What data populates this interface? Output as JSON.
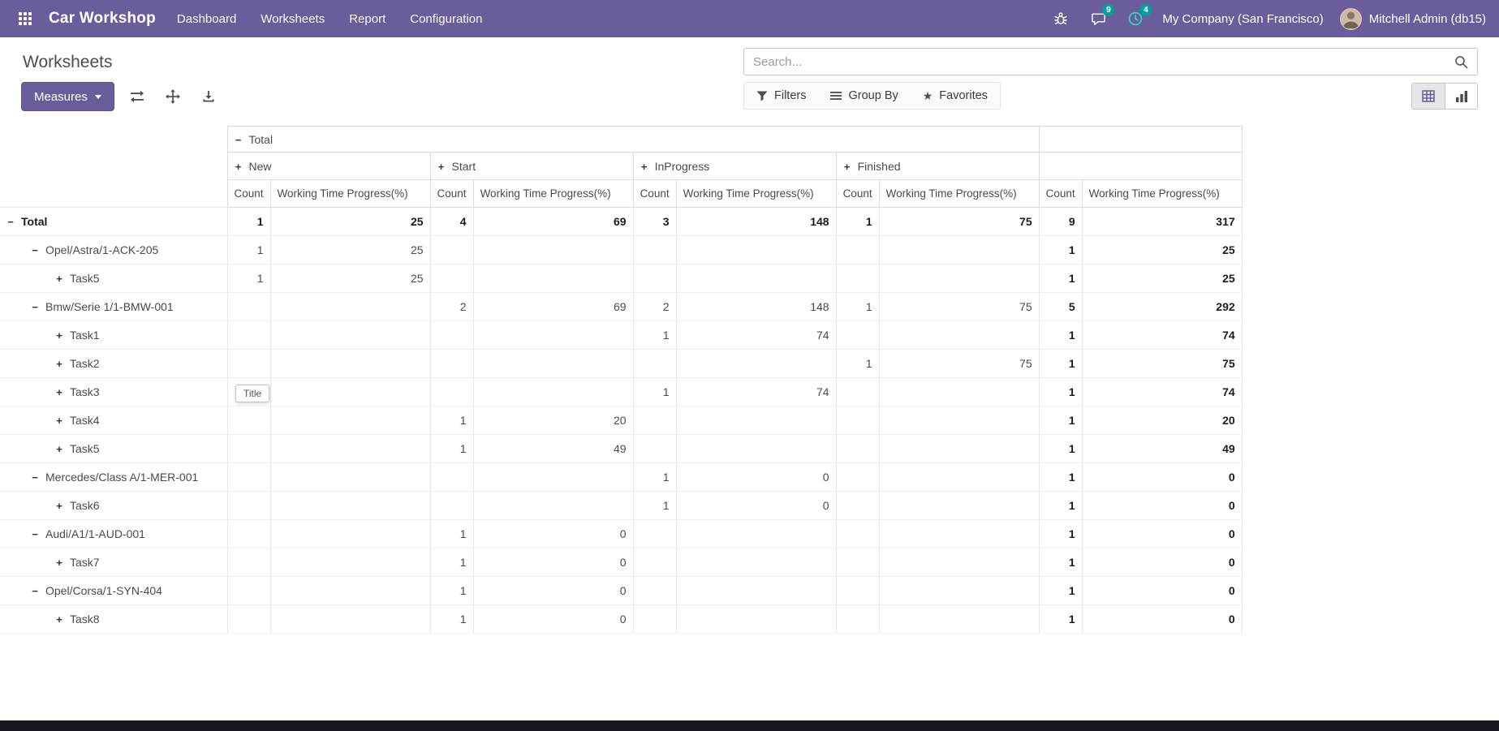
{
  "colors": {
    "brand": "#6b5c9c",
    "badge_teal": "#00a09d"
  },
  "icons": {
    "expand": "+",
    "collapse": "−",
    "star": "★"
  },
  "navbar": {
    "app_title": "Car Workshop",
    "menu": [
      "Dashboard",
      "Worksheets",
      "Report",
      "Configuration"
    ],
    "message_badge": "9",
    "activity_badge": "4",
    "company": "My Company (San Francisco)",
    "user": "Mitchell Admin (db15)"
  },
  "control_panel": {
    "title": "Worksheets",
    "search_placeholder": "Search...",
    "measures_label": "Measures",
    "filters_label": "Filters",
    "group_by_label": "Group By",
    "favorites_label": "Favorites"
  },
  "tooltip": {
    "text": "Title"
  },
  "pivot": {
    "top_header": "Total",
    "col_groups": [
      "New",
      "Start",
      "InProgress",
      "Finished"
    ],
    "measures": [
      "Count",
      "Working Time Progress(%)"
    ],
    "rows": [
      {
        "label": "Total",
        "level": 0,
        "expanded": true,
        "bold": true,
        "cells": [
          "1",
          "25",
          "4",
          "69",
          "3",
          "148",
          "1",
          "75",
          "9",
          "317"
        ]
      },
      {
        "label": "Opel/Astra/1-ACK-205",
        "level": 1,
        "expanded": true,
        "cells": [
          "1",
          "25",
          "",
          "",
          "",
          "",
          "",
          "",
          "1",
          "25"
        ]
      },
      {
        "label": "Task5",
        "level": 2,
        "expanded": false,
        "cells": [
          "1",
          "25",
          "",
          "",
          "",
          "",
          "",
          "",
          "1",
          "25"
        ]
      },
      {
        "label": "Bmw/Serie 1/1-BMW-001",
        "level": 1,
        "expanded": true,
        "cells": [
          "",
          "",
          "2",
          "69",
          "2",
          "148",
          "1",
          "75",
          "5",
          "292"
        ]
      },
      {
        "label": "Task1",
        "level": 2,
        "expanded": false,
        "cells": [
          "",
          "",
          "",
          "",
          "1",
          "74",
          "",
          "",
          "1",
          "74"
        ]
      },
      {
        "label": "Task2",
        "level": 2,
        "expanded": false,
        "cells": [
          "",
          "",
          "",
          "",
          "",
          "",
          "1",
          "75",
          "1",
          "75"
        ]
      },
      {
        "label": "Task3",
        "level": 2,
        "expanded": false,
        "cells": [
          "",
          "",
          "",
          "",
          "1",
          "74",
          "",
          "",
          "1",
          "74"
        ]
      },
      {
        "label": "Task4",
        "level": 2,
        "expanded": false,
        "cells": [
          "",
          "",
          "1",
          "20",
          "",
          "",
          "",
          "",
          "1",
          "20"
        ]
      },
      {
        "label": "Task5",
        "level": 2,
        "expanded": false,
        "cells": [
          "",
          "",
          "1",
          "49",
          "",
          "",
          "",
          "",
          "1",
          "49"
        ]
      },
      {
        "label": "Mercedes/Class A/1-MER-001",
        "level": 1,
        "expanded": true,
        "cells": [
          "",
          "",
          "",
          "",
          "1",
          "0",
          "",
          "",
          "1",
          "0"
        ]
      },
      {
        "label": "Task6",
        "level": 2,
        "expanded": false,
        "cells": [
          "",
          "",
          "",
          "",
          "1",
          "0",
          "",
          "",
          "1",
          "0"
        ]
      },
      {
        "label": "Audi/A1/1-AUD-001",
        "level": 1,
        "expanded": true,
        "cells": [
          "",
          "",
          "1",
          "0",
          "",
          "",
          "",
          "",
          "1",
          "0"
        ]
      },
      {
        "label": "Task7",
        "level": 2,
        "expanded": false,
        "cells": [
          "",
          "",
          "1",
          "0",
          "",
          "",
          "",
          "",
          "1",
          "0"
        ]
      },
      {
        "label": "Opel/Corsa/1-SYN-404",
        "level": 1,
        "expanded": true,
        "cells": [
          "",
          "",
          "1",
          "0",
          "",
          "",
          "",
          "",
          "1",
          "0"
        ]
      },
      {
        "label": "Task8",
        "level": 2,
        "expanded": false,
        "cells": [
          "",
          "",
          "1",
          "0",
          "",
          "",
          "",
          "",
          "1",
          "0"
        ]
      }
    ]
  }
}
